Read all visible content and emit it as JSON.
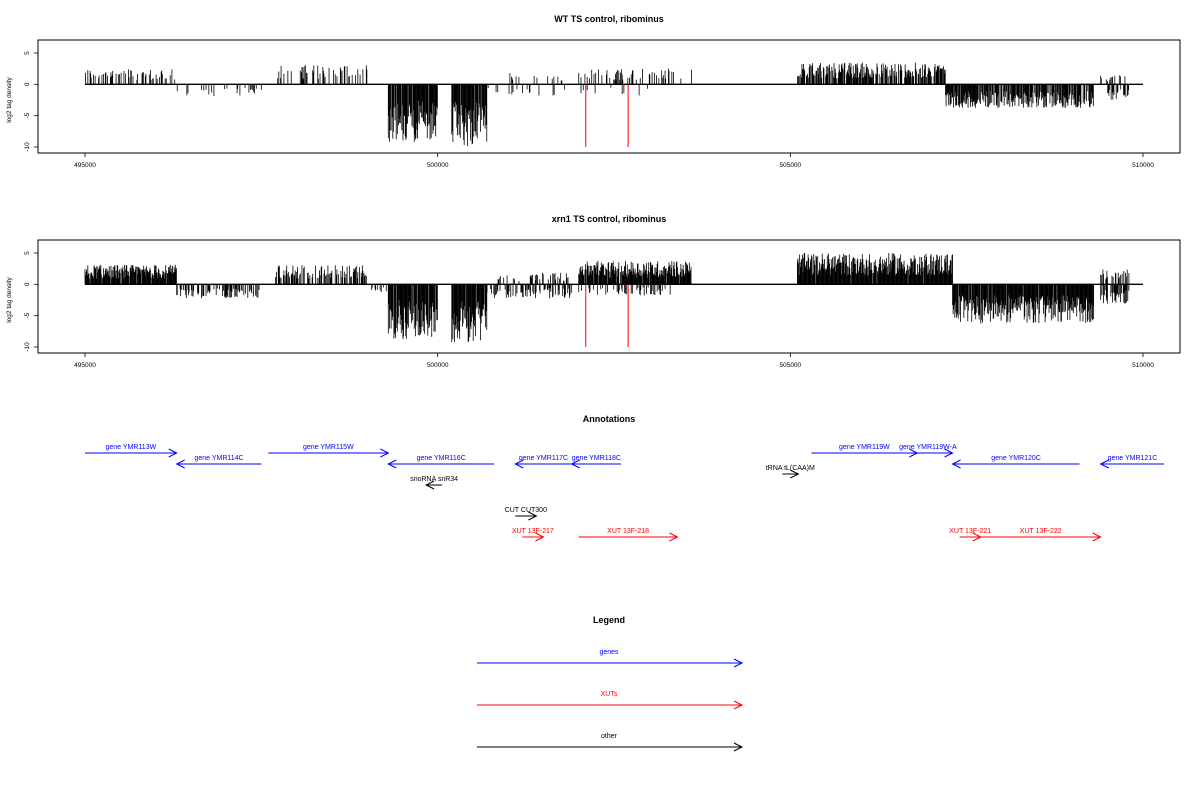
{
  "colors": {
    "genes": "#0000ff",
    "xuts": "#ff0000",
    "other": "#000000",
    "marker": "#ff0000"
  },
  "chart_data": [
    {
      "type": "bar",
      "title": "WT TS control, ribominus",
      "ylabel": "log2 tag density",
      "xlim": [
        495000,
        510000
      ],
      "ylim": [
        -10,
        5
      ],
      "x_ticks": [
        495000,
        500000,
        505000,
        510000
      ],
      "y_ticks": [
        -10,
        -5,
        0,
        5
      ],
      "red_markers": [
        502100,
        502700
      ],
      "segments": [
        {
          "from": 495000,
          "to": 496300,
          "level": 2.0,
          "density": 0.35,
          "strand": "plus"
        },
        {
          "from": 496300,
          "to": 497500,
          "level": -1.5,
          "density": 0.12,
          "strand": "minus"
        },
        {
          "from": 497700,
          "to": 499000,
          "level": 2.5,
          "density": 0.3,
          "strand": "plus"
        },
        {
          "from": 499300,
          "to": 500000,
          "level": -7.5,
          "density": 0.9,
          "strand": "minus"
        },
        {
          "from": 500200,
          "to": 500700,
          "level": -8.0,
          "density": 0.9,
          "strand": "minus"
        },
        {
          "from": 500700,
          "to": 501800,
          "level": -1.5,
          "density": 0.1,
          "strand": "minus"
        },
        {
          "from": 501000,
          "to": 501800,
          "level": 1.5,
          "density": 0.1,
          "strand": "plus"
        },
        {
          "from": 502000,
          "to": 503600,
          "level": 2.0,
          "density": 0.22,
          "strand": "plus"
        },
        {
          "from": 502000,
          "to": 503000,
          "level": -1.5,
          "density": 0.08,
          "strand": "minus"
        },
        {
          "from": 505100,
          "to": 507200,
          "level": 2.8,
          "density": 0.75,
          "strand": "plus"
        },
        {
          "from": 507200,
          "to": 509300,
          "level": -3.0,
          "density": 0.8,
          "strand": "minus"
        },
        {
          "from": 509400,
          "to": 509800,
          "level": 1.2,
          "density": 0.25,
          "strand": "plus"
        },
        {
          "from": 509500,
          "to": 509800,
          "level": -2.0,
          "density": 0.6,
          "strand": "minus"
        }
      ]
    },
    {
      "type": "bar",
      "title": "xrn1 TS control, ribominus",
      "ylabel": "log2 tag density",
      "xlim": [
        495000,
        510000
      ],
      "ylim": [
        -10,
        5
      ],
      "x_ticks": [
        495000,
        500000,
        505000,
        510000
      ],
      "y_ticks": [
        -10,
        -5,
        0,
        5
      ],
      "red_markers": [
        502100,
        502700
      ],
      "segments": [
        {
          "from": 495000,
          "to": 496300,
          "level": 2.5,
          "density": 0.95,
          "strand": "plus"
        },
        {
          "from": 496300,
          "to": 497500,
          "level": -1.8,
          "density": 0.45,
          "strand": "minus"
        },
        {
          "from": 497700,
          "to": 499000,
          "level": 2.5,
          "density": 0.5,
          "strand": "plus"
        },
        {
          "from": 499000,
          "to": 499300,
          "level": -1.0,
          "density": 0.3,
          "strand": "minus"
        },
        {
          "from": 499300,
          "to": 500000,
          "level": -7.0,
          "density": 0.95,
          "strand": "minus"
        },
        {
          "from": 500200,
          "to": 500700,
          "level": -7.5,
          "density": 0.95,
          "strand": "minus"
        },
        {
          "from": 500700,
          "to": 501900,
          "level": -1.8,
          "density": 0.35,
          "strand": "minus"
        },
        {
          "from": 500800,
          "to": 501900,
          "level": 1.5,
          "density": 0.25,
          "strand": "plus"
        },
        {
          "from": 502000,
          "to": 503600,
          "level": 3.0,
          "density": 0.9,
          "strand": "plus"
        },
        {
          "from": 502000,
          "to": 503300,
          "level": -1.5,
          "density": 0.3,
          "strand": "minus"
        },
        {
          "from": 505100,
          "to": 507300,
          "level": 4.0,
          "density": 0.98,
          "strand": "plus"
        },
        {
          "from": 507300,
          "to": 509300,
          "level": -5.0,
          "density": 0.98,
          "strand": "minus"
        },
        {
          "from": 509400,
          "to": 509800,
          "level": 2.0,
          "density": 0.5,
          "strand": "plus"
        },
        {
          "from": 509400,
          "to": 509800,
          "level": -2.5,
          "density": 0.7,
          "strand": "minus"
        }
      ]
    }
  ],
  "annotations": {
    "title": "Annotations",
    "tracks": [
      {
        "label": "gene YMR113W",
        "start": 495000,
        "end": 496300,
        "row": 0,
        "kind": "genes",
        "strand": "+"
      },
      {
        "label": "gene YMR114C",
        "start": 496300,
        "end": 497500,
        "row": 1,
        "kind": "genes",
        "strand": "-"
      },
      {
        "label": "gene YMR115W",
        "start": 497600,
        "end": 499300,
        "row": 0,
        "kind": "genes",
        "strand": "+"
      },
      {
        "label": "gene YMR116C",
        "start": 499300,
        "end": 500800,
        "row": 1,
        "kind": "genes",
        "strand": "-"
      },
      {
        "label": "gene YMR117C",
        "start": 501100,
        "end": 501900,
        "row": 1,
        "kind": "genes",
        "strand": "-"
      },
      {
        "label": "gene YMR118C",
        "start": 501900,
        "end": 502600,
        "row": 1,
        "kind": "genes",
        "strand": "-"
      },
      {
        "label": "gene YMR119W",
        "start": 505300,
        "end": 506800,
        "row": 0,
        "kind": "genes",
        "strand": "+"
      },
      {
        "label": "gene YMR119W-A",
        "start": 506600,
        "end": 507300,
        "row": 0,
        "kind": "genes",
        "strand": "+"
      },
      {
        "label": "gene YMR120C",
        "start": 507300,
        "end": 509100,
        "row": 1,
        "kind": "genes",
        "strand": "-"
      },
      {
        "label": "gene YMR121C",
        "start": 509400,
        "end": 510300,
        "row": 1,
        "kind": "genes",
        "strand": "-"
      },
      {
        "label": "tRNA tL(CAA)M",
        "start": 505000,
        "end": 505000,
        "row": 2,
        "kind": "other",
        "strand": "+"
      },
      {
        "label": "snoRNA snR34",
        "start": 499950,
        "end": 500050,
        "row": 3,
        "kind": "other",
        "strand": "-"
      },
      {
        "label": "CUT CUT300",
        "start": 501100,
        "end": 501400,
        "row": 4,
        "kind": "other",
        "strand": "+"
      },
      {
        "label": "XUT 13F-217",
        "start": 501200,
        "end": 501500,
        "row": 5,
        "kind": "xuts",
        "strand": "+"
      },
      {
        "label": "XUT 13F-218",
        "start": 502000,
        "end": 503400,
        "row": 5,
        "kind": "xuts",
        "strand": "+"
      },
      {
        "label": "XUT 13F-221",
        "start": 507400,
        "end": 507700,
        "row": 5,
        "kind": "xuts",
        "strand": "+"
      },
      {
        "label": "XUT 13F-222",
        "start": 507700,
        "end": 509400,
        "row": 5,
        "kind": "xuts",
        "strand": "+"
      }
    ]
  },
  "legend": {
    "title": "Legend",
    "items": [
      {
        "label": "genes",
        "kind": "genes"
      },
      {
        "label": "XUTs",
        "kind": "xuts"
      },
      {
        "label": "other",
        "kind": "other"
      }
    ]
  }
}
